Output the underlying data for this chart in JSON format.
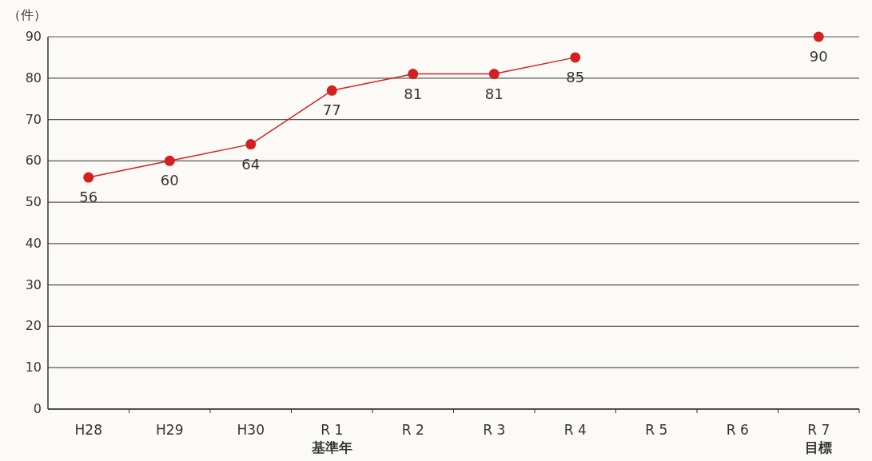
{
  "chart_data": {
    "type": "line",
    "ylabel": "（件）",
    "categories": [
      "H28",
      "H29",
      "H30",
      "R 1\n基準年",
      "R 2",
      "R 3",
      "R 4",
      "R 5",
      "R 6",
      "R 7\n目標"
    ],
    "series": [
      {
        "color": "#d42020",
        "values": [
          56,
          60,
          64,
          77,
          81,
          81,
          85,
          null,
          null,
          90
        ]
      }
    ],
    "ylim": [
      0,
      90
    ],
    "yticks": [
      0,
      10,
      20,
      30,
      40,
      50,
      60,
      70,
      80,
      90
    ],
    "grid": "y",
    "marker": "circle",
    "line_style": "solid",
    "data_labels": true
  }
}
